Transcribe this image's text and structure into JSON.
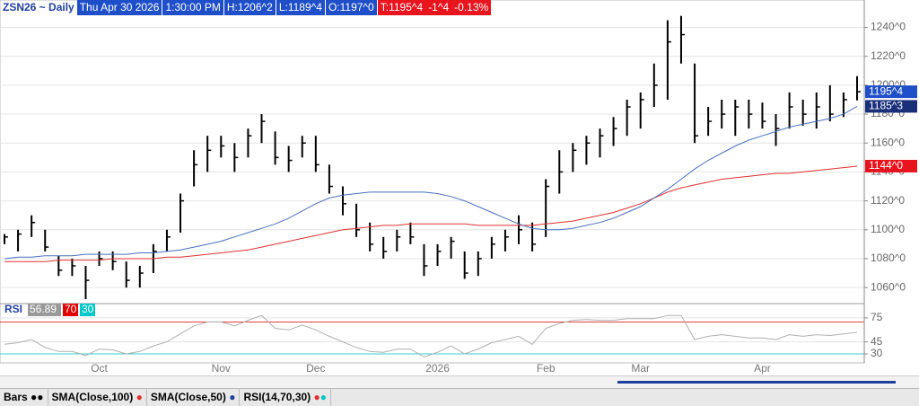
{
  "header": {
    "symbol": "ZSN26 ~ Daily",
    "date": "Thu Apr 30 2026",
    "time": "1:30:00 PM",
    "high": "H:1206^2",
    "low": "L:1189^4",
    "open": "O:1197^0",
    "last": "T:1195^4",
    "change": "-1^4",
    "change_pct": "-0.13%"
  },
  "chart_data": [
    {
      "type": "hlc",
      "categories": [
        null,
        null,
        null,
        null,
        null,
        null,
        null,
        "Oct",
        null,
        null,
        null,
        null,
        null,
        null,
        null,
        null,
        "Nov",
        null,
        null,
        null,
        null,
        null,
        null,
        "Dec",
        null,
        null,
        null,
        null,
        null,
        null,
        null,
        null,
        "2026",
        null,
        null,
        null,
        null,
        null,
        null,
        null,
        "Feb",
        null,
        null,
        null,
        null,
        null,
        null,
        "Mar",
        null,
        null,
        null,
        null,
        null,
        null,
        null,
        null,
        "Apr",
        null,
        null,
        null,
        null,
        null,
        null,
        null
      ],
      "series": [
        {
          "name": "Bars",
          "type": "hlc",
          "color": "#000000",
          "tag_color": "#1f4fc8",
          "last_label": "1195^4",
          "high": [
            1097,
            1100,
            1110,
            1100,
            1082,
            1080,
            1075,
            1085,
            1085,
            1078,
            1075,
            1090,
            1100,
            1125,
            1155,
            1165,
            1165,
            1160,
            1170,
            1180,
            1168,
            1158,
            1165,
            1165,
            1145,
            1130,
            1118,
            1105,
            1095,
            1100,
            1105,
            1090,
            1090,
            1095,
            1085,
            1085,
            1095,
            1100,
            1110,
            1105,
            1135,
            1155,
            1160,
            1165,
            1170,
            1178,
            1190,
            1195,
            1215,
            1245,
            1248,
            1215,
            1185,
            1190,
            1190,
            1190,
            1188,
            1180,
            1195,
            1190,
            1195,
            1200,
            1195,
            1206.25
          ],
          "low": [
            1090,
            1085,
            1095,
            1085,
            1068,
            1068,
            1052,
            1075,
            1072,
            1060,
            1060,
            1070,
            1085,
            1098,
            1130,
            1140,
            1150,
            1140,
            1150,
            1160,
            1145,
            1140,
            1150,
            1140,
            1125,
            1110,
            1095,
            1085,
            1080,
            1085,
            1090,
            1068,
            1075,
            1080,
            1066,
            1068,
            1080,
            1085,
            1090,
            1085,
            1095,
            1125,
            1140,
            1145,
            1150,
            1158,
            1165,
            1170,
            1185,
            1190,
            1215,
            1160,
            1165,
            1170,
            1165,
            1170,
            1170,
            1158,
            1170,
            1172,
            1170,
            1175,
            1178,
            1189.5
          ],
          "close": [
            1095,
            1097,
            1105,
            1088,
            1072,
            1075,
            1065,
            1080,
            1078,
            1065,
            1070,
            1085,
            1095,
            1120,
            1145,
            1155,
            1158,
            1150,
            1165,
            1175,
            1150,
            1148,
            1160,
            1145,
            1130,
            1118,
            1100,
            1090,
            1085,
            1095,
            1095,
            1075,
            1085,
            1092,
            1070,
            1080,
            1090,
            1095,
            1100,
            1090,
            1130,
            1140,
            1155,
            1160,
            1165,
            1170,
            1185,
            1190,
            1200,
            1230,
            1235,
            1165,
            1175,
            1180,
            1185,
            1180,
            1175,
            1170,
            1185,
            1180,
            1185,
            1180,
            1190,
            1195.5
          ]
        },
        {
          "name": "SMA(Close,100)",
          "type": "line",
          "color": "#e03030",
          "tag_color": "#e8141e",
          "last_label": "1144^0",
          "values": [
            1078,
            1078,
            1078,
            1078,
            1079,
            1079,
            1079,
            1079,
            1080,
            1080,
            1080,
            1080,
            1081,
            1081,
            1082,
            1083,
            1084,
            1085,
            1086,
            1088,
            1090,
            1092,
            1094,
            1096,
            1098,
            1100,
            1101,
            1102,
            1103,
            1103,
            1104,
            1104,
            1104,
            1104,
            1104,
            1103,
            1103,
            1103,
            1103,
            1103,
            1104,
            1105,
            1106,
            1108,
            1110,
            1112,
            1115,
            1118,
            1122,
            1126,
            1129,
            1131,
            1133,
            1135,
            1136,
            1137,
            1138,
            1139,
            1139,
            1140,
            1141,
            1142,
            1143,
            1144
          ]
        },
        {
          "name": "SMA(Close,50)",
          "type": "line",
          "color": "#4a6fc0",
          "tag_color": "#1a2f7a",
          "last_label": "1185^3",
          "values": [
            1080,
            1081,
            1081,
            1082,
            1082,
            1082,
            1083,
            1083,
            1083,
            1083,
            1084,
            1084,
            1085,
            1086,
            1088,
            1090,
            1092,
            1095,
            1098,
            1101,
            1104,
            1108,
            1113,
            1118,
            1122,
            1124,
            1125,
            1126,
            1126,
            1126,
            1126,
            1126,
            1125,
            1123,
            1120,
            1116,
            1112,
            1108,
            1104,
            1101,
            1100,
            1100,
            1101,
            1103,
            1105,
            1108,
            1112,
            1116,
            1122,
            1128,
            1135,
            1142,
            1148,
            1153,
            1158,
            1162,
            1165,
            1168,
            1171,
            1173,
            1175,
            1177,
            1180,
            1185.375
          ]
        }
      ],
      "ylim": [
        1052,
        1254
      ],
      "yticks": [
        {
          "value": 1060,
          "label": "1060^0"
        },
        {
          "value": 1080,
          "label": "1080^0"
        },
        {
          "value": 1100,
          "label": "1100^0"
        },
        {
          "value": 1120,
          "label": "1120^0"
        },
        {
          "value": 1140,
          "label": "1140^0"
        },
        {
          "value": 1160,
          "label": "1160^0"
        },
        {
          "value": 1180,
          "label": "1180^0"
        },
        {
          "value": 1200,
          "label": "1200^0"
        },
        {
          "value": 1220,
          "label": "1220^0"
        },
        {
          "value": 1240,
          "label": "1240^0"
        }
      ],
      "grid": true
    },
    {
      "type": "line",
      "title": "RSI",
      "series": [
        {
          "name": "RSI(14,70,30)",
          "type": "line",
          "color": "#b0b0b0",
          "last_label": "56.89",
          "values": [
            42,
            44,
            48,
            38,
            33,
            33,
            28,
            36,
            35,
            30,
            33,
            40,
            45,
            55,
            65,
            70,
            70,
            65,
            72,
            78,
            62,
            60,
            66,
            60,
            52,
            45,
            38,
            33,
            32,
            36,
            36,
            26,
            32,
            40,
            30,
            36,
            44,
            48,
            52,
            42,
            62,
            68,
            72,
            73,
            72,
            72,
            74,
            74,
            74,
            78,
            78,
            48,
            52,
            54,
            52,
            50,
            50,
            48,
            54,
            52,
            54,
            53,
            55,
            56.89
          ]
        }
      ],
      "levels": [
        {
          "value": 70,
          "label": "70",
          "color": "#e00000"
        },
        {
          "value": 30,
          "label": "30",
          "color": "#00c8c8"
        }
      ],
      "ylim": [
        21,
        85
      ],
      "yticks": [
        30,
        45,
        75
      ],
      "grid": true
    }
  ]
}
